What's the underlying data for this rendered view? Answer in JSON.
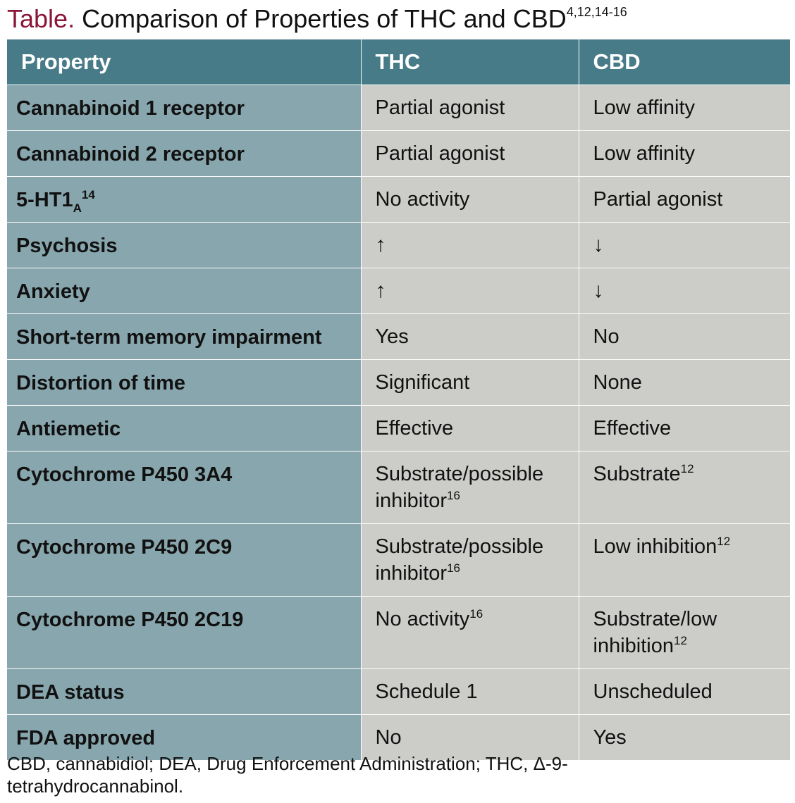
{
  "title": {
    "label": "Table.",
    "text": "Comparison of Properties of THC and CBD",
    "refs": "4,12,14-16"
  },
  "headers": [
    "Property",
    "THC",
    "CBD"
  ],
  "rows": [
    {
      "property": "Cannabinoid 1 receptor",
      "thc": "Partial agonist",
      "cbd": "Low affinity"
    },
    {
      "property": "Cannabinoid 2 receptor",
      "thc": "Partial agonist",
      "cbd": "Low affinity"
    },
    {
      "property": "5-HT1",
      "property_sub": "A",
      "property_sup": "14",
      "thc": "No activity",
      "cbd": "Partial agonist"
    },
    {
      "property": "Psychosis",
      "thc": "↑",
      "cbd": "↓"
    },
    {
      "property": "Anxiety",
      "thc": "↑",
      "cbd": "↓"
    },
    {
      "property": "Short-term memory impairment",
      "thc": "Yes",
      "cbd": "No"
    },
    {
      "property": "Distortion of time",
      "thc": "Significant",
      "cbd": "None"
    },
    {
      "property": "Antiemetic",
      "thc": "Effective",
      "cbd": "Effective"
    },
    {
      "property": "Cytochrome P450 3A4",
      "thc": "Substrate/possible inhibitor",
      "thc_sup": "16",
      "cbd": "Substrate",
      "cbd_sup": "12"
    },
    {
      "property": "Cytochrome P450 2C9",
      "thc": "Substrate/possible inhibitor",
      "thc_sup": "16",
      "cbd": "Low inhibition",
      "cbd_sup": "12"
    },
    {
      "property": "Cytochrome P450 2C19",
      "thc": "No activity",
      "thc_sup": "16",
      "cbd": "Substrate/low inhibition",
      "cbd_sup": "12"
    },
    {
      "property": "DEA status",
      "thc": "Schedule 1",
      "cbd": "Unscheduled"
    },
    {
      "property": "FDA approved",
      "thc": "No",
      "cbd": "Yes"
    }
  ],
  "footnote": "CBD, cannabidiol; DEA, Drug Enforcement Administration; THC, Δ-9-tetrahydrocannabinol."
}
